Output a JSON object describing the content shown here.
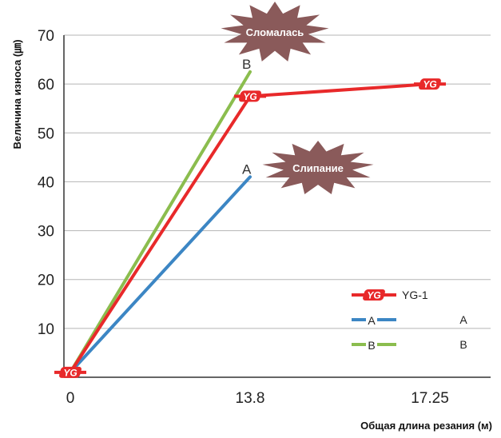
{
  "chart_data": {
    "type": "line",
    "xlabel": "Общая длина резания (м)",
    "ylabel": "Величина износа (㎛)",
    "categories": [
      "0",
      "13.8",
      "17.25"
    ],
    "y_ticks": [
      "10",
      "20",
      "30",
      "40",
      "50",
      "60",
      "70"
    ],
    "ylim": [
      0,
      70
    ],
    "grid": true,
    "legend_position": "bottom-right",
    "series": [
      {
        "name": "YG-1",
        "color": "#e8292a",
        "values": [
          1,
          57.5,
          60
        ],
        "end_label": ""
      },
      {
        "name": "A",
        "color": "#3c86c4",
        "values": [
          1,
          41,
          null
        ],
        "end_label": "A"
      },
      {
        "name": "B",
        "color": "#8bbd4e",
        "values": [
          1,
          62.5,
          null
        ],
        "end_label": "B"
      }
    ],
    "legend": [
      {
        "series": "YG-1",
        "marker_text": "",
        "text": "YG-1"
      },
      {
        "series": "A",
        "marker_text": "A",
        "text": "A"
      },
      {
        "series": "B",
        "marker_text": "B",
        "text": "B"
      }
    ],
    "annotations": [
      {
        "text": "Сломалась",
        "series": "B",
        "color": "#8a5a5a"
      },
      {
        "text": "Слипание",
        "series": "A",
        "color": "#8a5a5a"
      }
    ],
    "logo_text": "YG"
  }
}
